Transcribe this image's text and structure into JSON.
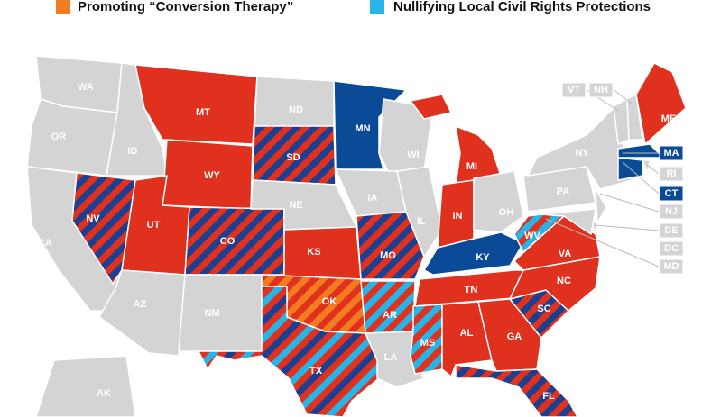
{
  "legend": [
    {
      "label": "Promoting “Conversion Therapy”",
      "color": "#f47c20"
    },
    {
      "label": "Nullifying Local Civil Rights Protections",
      "color": "#27b5e8"
    }
  ],
  "states": [
    {
      "abbr": "WA",
      "colors": [
        "#d4d4d4"
      ]
    },
    {
      "abbr": "OR",
      "colors": [
        "#d4d4d4"
      ]
    },
    {
      "abbr": "CA",
      "colors": [
        "#d4d4d4"
      ]
    },
    {
      "abbr": "NV",
      "colors": [
        "#e0301e",
        "#1c3f8f"
      ]
    },
    {
      "abbr": "ID",
      "colors": [
        "#d4d4d4"
      ]
    },
    {
      "abbr": "MT",
      "colors": [
        "#e0301e"
      ]
    },
    {
      "abbr": "WY",
      "colors": [
        "#e0301e"
      ]
    },
    {
      "abbr": "UT",
      "colors": [
        "#e0301e"
      ]
    },
    {
      "abbr": "AZ",
      "colors": [
        "#d4d4d4"
      ]
    },
    {
      "abbr": "CO",
      "colors": [
        "#e0301e",
        "#1c3f8f"
      ]
    },
    {
      "abbr": "NM",
      "colors": [
        "#d4d4d4"
      ]
    },
    {
      "abbr": "ND",
      "colors": [
        "#d4d4d4"
      ]
    },
    {
      "abbr": "SD",
      "colors": [
        "#e0301e",
        "#1c3f8f"
      ]
    },
    {
      "abbr": "NE",
      "colors": [
        "#d4d4d4"
      ]
    },
    {
      "abbr": "KS",
      "colors": [
        "#e0301e"
      ]
    },
    {
      "abbr": "OK",
      "colors": [
        "#e0301e",
        "#f47c20"
      ]
    },
    {
      "abbr": "TX",
      "colors": [
        "#e0301e",
        "#1c3f8f",
        "#e0301e",
        "#27b5e8"
      ]
    },
    {
      "abbr": "MN",
      "colors": [
        "#0b4a96"
      ]
    },
    {
      "abbr": "IA",
      "colors": [
        "#d4d4d4"
      ]
    },
    {
      "abbr": "MO",
      "colors": [
        "#e0301e",
        "#1c3f8f"
      ]
    },
    {
      "abbr": "AR",
      "colors": [
        "#e0301e",
        "#27b5e8"
      ]
    },
    {
      "abbr": "LA",
      "colors": [
        "#d4d4d4"
      ]
    },
    {
      "abbr": "WI",
      "colors": [
        "#d4d4d4"
      ]
    },
    {
      "abbr": "IL",
      "colors": [
        "#d4d4d4"
      ]
    },
    {
      "abbr": "MI",
      "colors": [
        "#e0301e"
      ]
    },
    {
      "abbr": "IN",
      "colors": [
        "#e0301e"
      ]
    },
    {
      "abbr": "OH",
      "colors": [
        "#d4d4d4"
      ]
    },
    {
      "abbr": "KY",
      "colors": [
        "#0b4a96"
      ]
    },
    {
      "abbr": "TN",
      "colors": [
        "#e0301e"
      ]
    },
    {
      "abbr": "MS",
      "colors": [
        "#e0301e",
        "#27b5e8"
      ]
    },
    {
      "abbr": "AL",
      "colors": [
        "#e0301e"
      ]
    },
    {
      "abbr": "GA",
      "colors": [
        "#e0301e"
      ]
    },
    {
      "abbr": "FL",
      "colors": [
        "#e0301e",
        "#1c3f8f"
      ]
    },
    {
      "abbr": "SC",
      "colors": [
        "#e0301e",
        "#1c3f8f"
      ]
    },
    {
      "abbr": "NC",
      "colors": [
        "#e0301e"
      ]
    },
    {
      "abbr": "VA",
      "colors": [
        "#e0301e"
      ]
    },
    {
      "abbr": "WV",
      "colors": [
        "#27b5e8",
        "#e0301e"
      ]
    },
    {
      "abbr": "PA",
      "colors": [
        "#d4d4d4"
      ]
    },
    {
      "abbr": "NY",
      "colors": [
        "#d4d4d4"
      ]
    },
    {
      "abbr": "ME",
      "colors": [
        "#e0301e"
      ]
    },
    {
      "abbr": "AK",
      "colors": [
        "#d4d4d4"
      ]
    },
    {
      "abbr": "VT",
      "colors": [
        "#d4d4d4"
      ]
    },
    {
      "abbr": "NH",
      "colors": [
        "#d4d4d4"
      ]
    },
    {
      "abbr": "MA",
      "colors": [
        "#0b4a96"
      ]
    },
    {
      "abbr": "RI",
      "colors": [
        "#d4d4d4"
      ]
    },
    {
      "abbr": "CT",
      "colors": [
        "#0b4a96"
      ]
    },
    {
      "abbr": "NJ",
      "colors": [
        "#d4d4d4"
      ]
    },
    {
      "abbr": "DE",
      "colors": [
        "#d4d4d4"
      ]
    },
    {
      "abbr": "DC",
      "colors": [
        "#d4d4d4"
      ]
    },
    {
      "abbr": "MD",
      "colors": [
        "#d4d4d4"
      ]
    }
  ]
}
